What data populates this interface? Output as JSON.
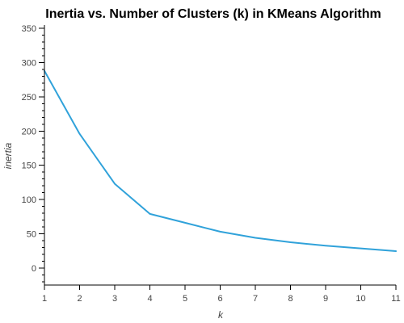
{
  "chart_data": {
    "type": "line",
    "title": "Inertia vs. Number of Clusters (k) in KMeans Algorithm",
    "xlabel": "k",
    "ylabel": "inertia",
    "xlim": [
      1,
      11
    ],
    "ylim": [
      -25,
      355
    ],
    "x_ticks": [
      1,
      2,
      3,
      4,
      5,
      6,
      7,
      8,
      9,
      10,
      11
    ],
    "y_ticks": [
      0,
      50,
      100,
      150,
      200,
      250,
      300,
      350
    ],
    "y_minor_step": 10,
    "grid": false,
    "legend": "none",
    "series": [
      {
        "color": "#30a2da",
        "x": [
          1,
          2,
          3,
          4,
          5,
          6,
          7,
          8,
          9,
          10,
          11
        ],
        "y": [
          288,
          196,
          123,
          79,
          66,
          53,
          44,
          37.5,
          32.5,
          28.5,
          24.5
        ]
      }
    ]
  }
}
